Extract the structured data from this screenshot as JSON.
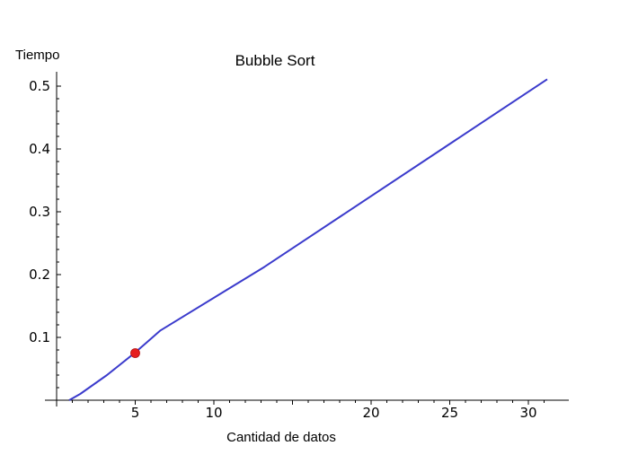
{
  "chart_data": {
    "type": "line",
    "title": "Bubble Sort",
    "xlabel": "Cantidad de datos",
    "ylabel": "Tiempo",
    "xlim": [
      0,
      31.8
    ],
    "ylim": [
      0,
      0.5
    ],
    "x_ticks": [
      5,
      10,
      20,
      25,
      30
    ],
    "y_ticks": [
      0.1,
      0.2,
      0.3,
      0.4,
      0.5
    ],
    "x_tick_labels": [
      "5",
      "10",
      "20",
      "25",
      "30"
    ],
    "y_tick_labels": [
      "0.1",
      "0.2",
      "0.3",
      "0.4",
      "0.5"
    ],
    "series": [
      {
        "color": "#3b3bcc",
        "x": [
          0.8,
          1.5,
          3.2,
          5.0,
          6.6,
          13.2,
          31.2
        ],
        "y": [
          0.0,
          0.01,
          0.04,
          0.076,
          0.111,
          0.212,
          0.511
        ]
      }
    ],
    "highlight_point": {
      "x": 5.0,
      "y": 0.075,
      "color": "#e61e1e"
    },
    "grid": false,
    "legend": "none"
  }
}
